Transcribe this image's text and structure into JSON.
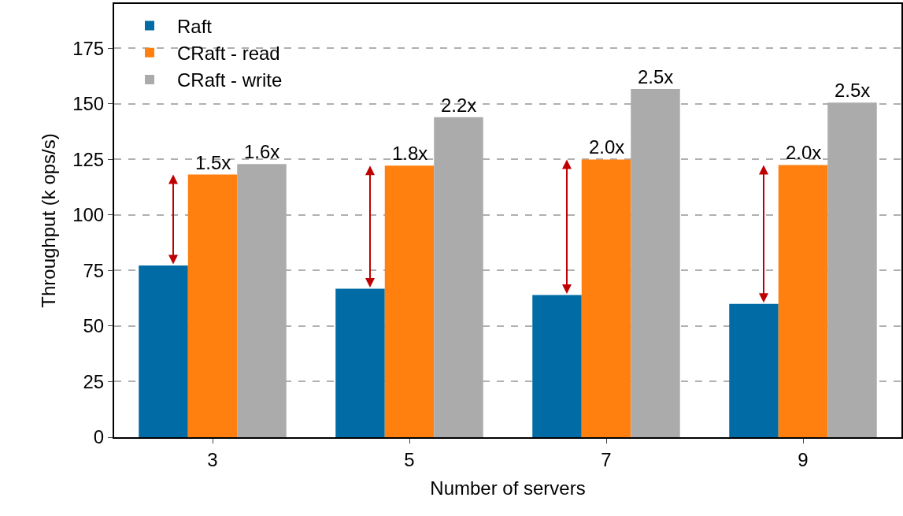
{
  "chart_data": {
    "type": "bar",
    "xlabel": "Number of servers",
    "ylabel": "Throughput (k ops/s)",
    "categories": [
      "3",
      "5",
      "7",
      "9"
    ],
    "series": [
      {
        "name": "Raft",
        "color": "#006ba4",
        "values": [
          77.3,
          66.8,
          64,
          60
        ]
      },
      {
        "name": "CRaft - read",
        "color": "#ff800e",
        "values": [
          118.2,
          122.2,
          125,
          122.5
        ]
      },
      {
        "name": "CRaft - write",
        "color": "#ababab",
        "values": [
          122.9,
          144,
          156.7,
          150.6
        ]
      }
    ],
    "annotations": [
      {
        "text": "1.5x",
        "x": "3",
        "y": 118.2
      },
      "1.6x",
      {
        "text": "1.8x",
        "x": "5",
        "y": 122.2
      },
      "2.2x",
      {
        "text": "2.0x",
        "x": "7",
        "y": 125
      },
      "2.5x",
      {
        "text": "2.0x",
        "x": "9",
        "y": 122.5
      },
      "2.5x"
    ],
    "ylim": [
      0,
      195
    ],
    "yticks": [
      0,
      25,
      50,
      75,
      100,
      125,
      150,
      175
    ],
    "grid": "y",
    "legend": "top left"
  }
}
